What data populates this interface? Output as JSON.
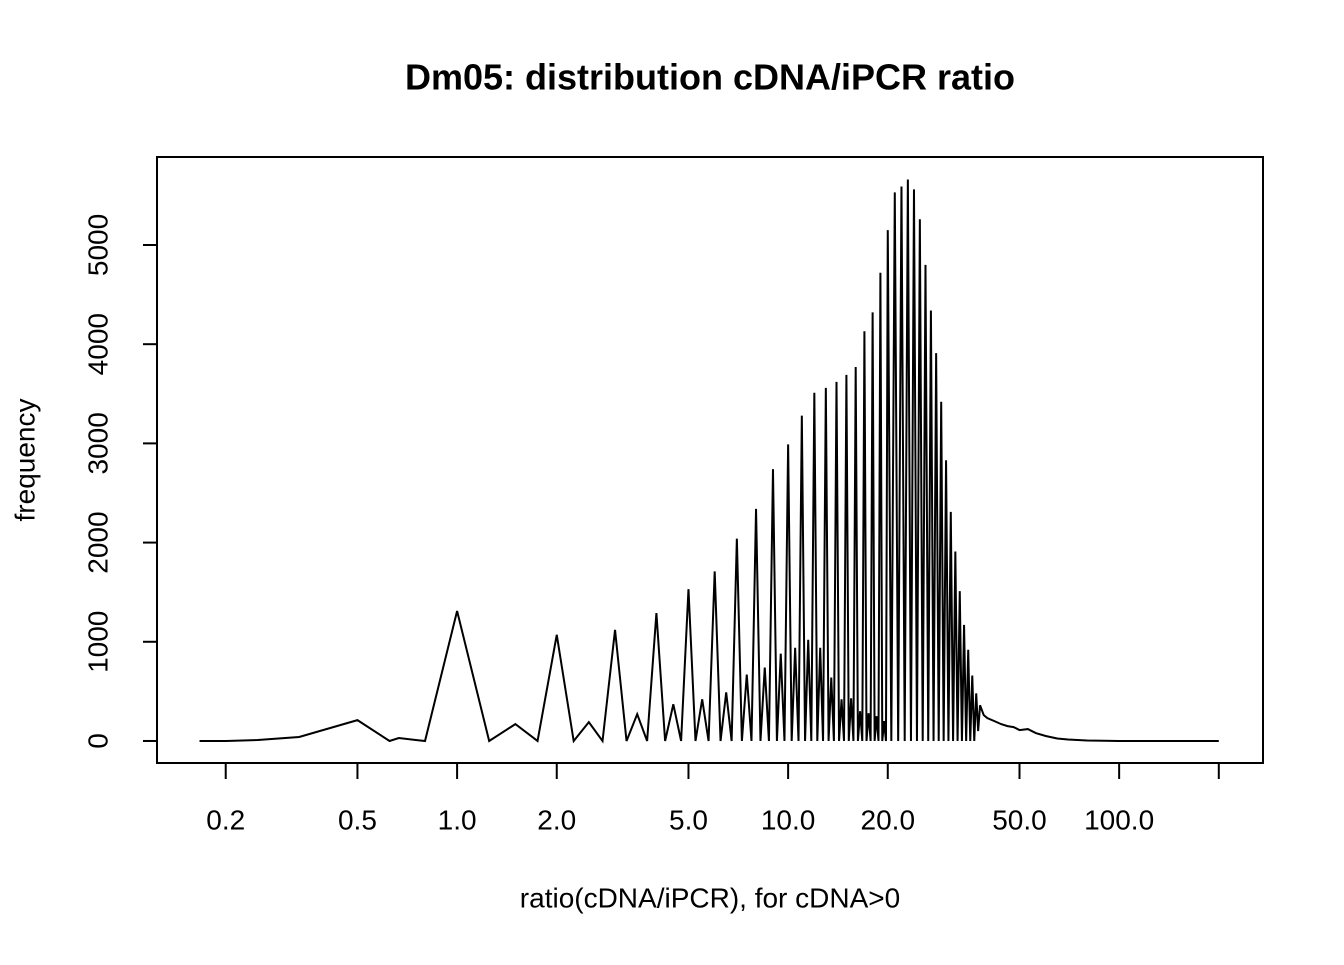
{
  "chart_data": {
    "type": "line",
    "title": "Dm05: distribution cDNA/iPCR ratio",
    "x_label": "ratio(cDNA/iPCR), for cDNA>0",
    "y_label": "frequency",
    "x_log": true,
    "color": "#000000",
    "x": [
      0.1667,
      0.2,
      0.25,
      0.3333,
      0.5,
      0.625,
      0.6667,
      0.75,
      0.8,
      1,
      1.25,
      1.5,
      1.75,
      2,
      2.25,
      2.5,
      2.75,
      3,
      3.25,
      3.5,
      3.75,
      4,
      4.25,
      4.5,
      4.75,
      5,
      5.25,
      5.5,
      5.75,
      6,
      6.25,
      6.5,
      6.75,
      7,
      7.25,
      7.5,
      7.75,
      8,
      8.25,
      8.5,
      8.75,
      9,
      9.25,
      9.5,
      9.75,
      10,
      10.25,
      10.5,
      10.75,
      11,
      11.25,
      11.5,
      11.75,
      12,
      12.25,
      12.5,
      12.75,
      13,
      13.25,
      13.5,
      13.75,
      14,
      14.25,
      14.5,
      14.75,
      15,
      15.25,
      15.5,
      15.75,
      16,
      16.25,
      16.5,
      16.75,
      17,
      17.25,
      17.5,
      17.75,
      18,
      18.25,
      18.5,
      18.75,
      19,
      19.25,
      19.5,
      19.75,
      20,
      20.5,
      21,
      21.5,
      22,
      22.5,
      23,
      23.5,
      24,
      24.5,
      25,
      25.5,
      26,
      26.5,
      27,
      27.5,
      28,
      28.5,
      29,
      29.5,
      30,
      30.5,
      31,
      31.5,
      32,
      32.5,
      33,
      33.5,
      34,
      34.5,
      35,
      35.5,
      36,
      36.5,
      37,
      37.5,
      38,
      39,
      40,
      42,
      44,
      46,
      48,
      50,
      53,
      56,
      60,
      65,
      70,
      80,
      90,
      100,
      150,
      200
    ],
    "values": [
      0,
      0,
      10,
      40,
      210,
      0,
      30,
      10,
      0,
      1310,
      0,
      170,
      0,
      1070,
      0,
      190,
      0,
      1120,
      0,
      270,
      0,
      1290,
      0,
      370,
      0,
      1530,
      0,
      420,
      0,
      1710,
      0,
      490,
      0,
      2040,
      0,
      670,
      0,
      2340,
      0,
      740,
      0,
      2740,
      0,
      880,
      0,
      2990,
      0,
      940,
      0,
      3280,
      0,
      1020,
      0,
      3510,
      0,
      940,
      0,
      3560,
      0,
      640,
      0,
      3620,
      0,
      420,
      0,
      3690,
      0,
      430,
      0,
      3770,
      0,
      300,
      0,
      4130,
      0,
      280,
      0,
      4320,
      0,
      250,
      0,
      4720,
      0,
      200,
      0,
      5150,
      0,
      5530,
      0,
      5590,
      0,
      5660,
      0,
      5560,
      0,
      5260,
      0,
      4800,
      0,
      4340,
      0,
      3910,
      0,
      3420,
      0,
      2830,
      0,
      2310,
      0,
      1910,
      0,
      1510,
      0,
      1170,
      0,
      920,
      0,
      660,
      0,
      480,
      100,
      360,
      260,
      230,
      200,
      170,
      150,
      140,
      110,
      120,
      80,
      50,
      25,
      15,
      5,
      2,
      0,
      0,
      0
    ],
    "xlim": [
      0.124,
      272
    ],
    "ylim": [
      -222,
      5887
    ],
    "xticks": [
      {
        "value": 0.2,
        "label": "0.2"
      },
      {
        "value": 0.5,
        "label": "0.5"
      },
      {
        "value": 1,
        "label": "1.0"
      },
      {
        "value": 2,
        "label": "2.0"
      },
      {
        "value": 5,
        "label": "5.0"
      },
      {
        "value": 10,
        "label": "10.0"
      },
      {
        "value": 20,
        "label": "20.0"
      },
      {
        "value": 50,
        "label": "50.0"
      },
      {
        "value": 100,
        "label": "100.0"
      },
      {
        "value": 200,
        "label": null
      }
    ],
    "yticks": [
      0,
      1000,
      2000,
      3000,
      4000,
      5000
    ]
  }
}
